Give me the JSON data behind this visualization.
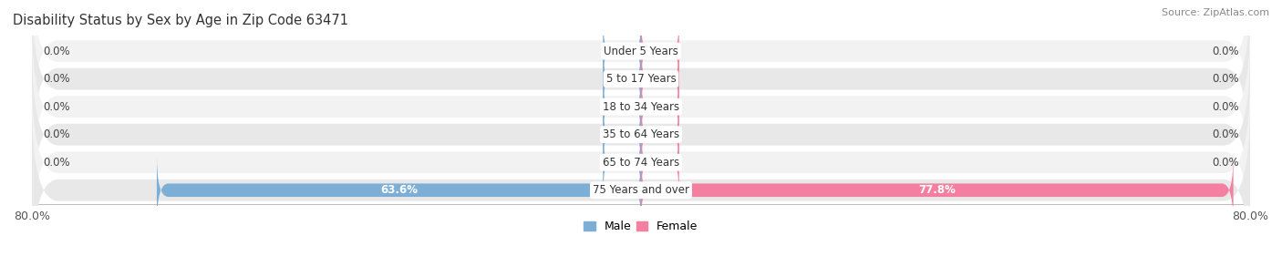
{
  "title": "Disability Status by Sex by Age in Zip Code 63471",
  "source": "Source: ZipAtlas.com",
  "categories": [
    "Under 5 Years",
    "5 to 17 Years",
    "18 to 34 Years",
    "35 to 64 Years",
    "65 to 74 Years",
    "75 Years and over"
  ],
  "male_values": [
    0.0,
    0.0,
    0.0,
    0.0,
    0.0,
    63.6
  ],
  "female_values": [
    0.0,
    0.0,
    0.0,
    0.0,
    0.0,
    77.8
  ],
  "male_color": "#7dafd6",
  "female_color": "#f47fa0",
  "row_bg_light": "#f2f2f2",
  "row_bg_dark": "#e8e8e8",
  "xlim": 80.0,
  "background_color": "#ffffff",
  "title_fontsize": 10.5,
  "category_fontsize": 8.5,
  "value_fontsize": 8.5,
  "source_fontsize": 8,
  "legend_fontsize": 9
}
